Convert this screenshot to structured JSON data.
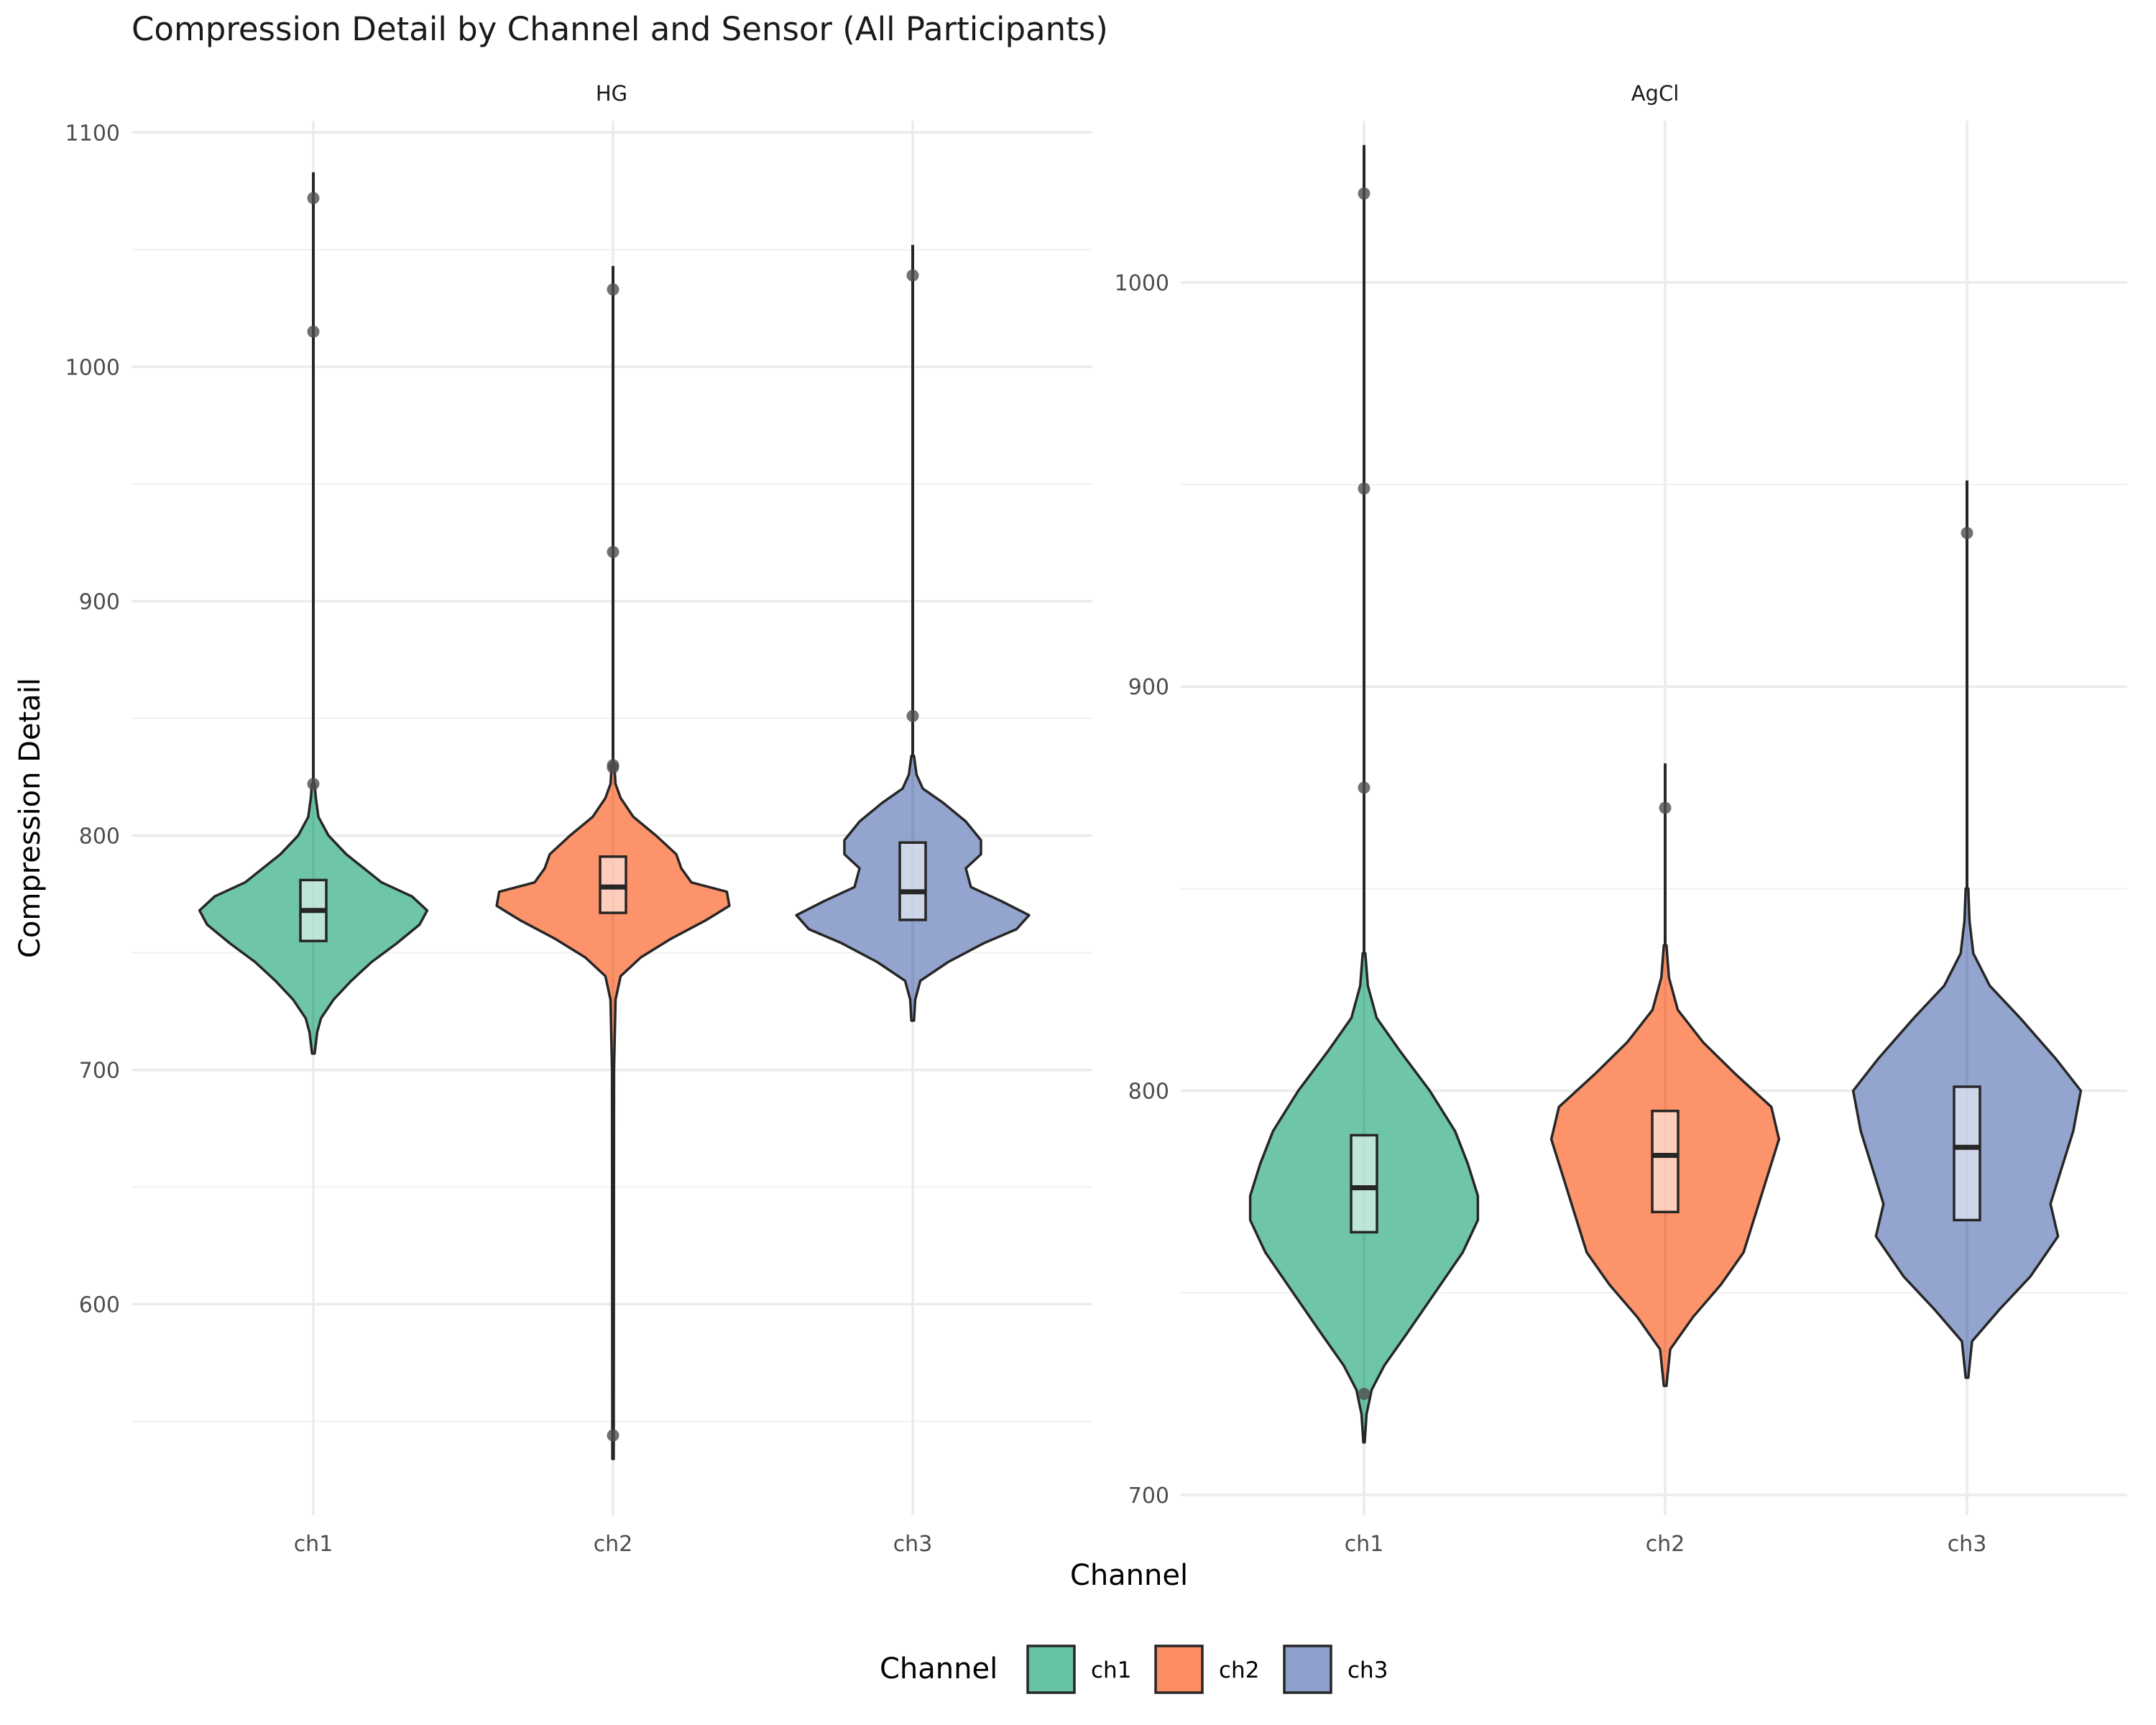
{
  "chart_data": {
    "type": "violin",
    "title": "Compression Detail by Channel and Sensor (All Participants)",
    "xlabel": "Channel",
    "ylabel": "Compression Detail",
    "categories": [
      "ch1",
      "ch2",
      "ch3"
    ],
    "colors": {
      "ch1": "#66c2a5",
      "ch2": "#fc8d62",
      "ch3": "#8da0cb"
    },
    "legend": {
      "title": "Channel",
      "position": "bottom",
      "items": [
        "ch1",
        "ch2",
        "ch3"
      ]
    },
    "panels": [
      {
        "name": "HG",
        "ylim": [
          510,
          1105
        ],
        "yticks": [
          600,
          700,
          800,
          900,
          1000,
          1100
        ],
        "groups": [
          {
            "channel": "ch1",
            "whisker": [
              707,
              1083
            ],
            "box": {
              "q1": 755,
              "median": 768,
              "q3": 781
            },
            "outliers": [
              822,
              1015,
              1072
            ],
            "density": [
              [
                707,
                0.01
              ],
              [
                716,
                0.03
              ],
              [
                722,
                0.06
              ],
              [
                730,
                0.16
              ],
              [
                738,
                0.3
              ],
              [
                746,
                0.46
              ],
              [
                754,
                0.66
              ],
              [
                762,
                0.84
              ],
              [
                768,
                0.9
              ],
              [
                774,
                0.78
              ],
              [
                780,
                0.54
              ],
              [
                786,
                0.4
              ],
              [
                792,
                0.26
              ],
              [
                800,
                0.12
              ],
              [
                808,
                0.04
              ],
              [
                816,
                0.02
              ],
              [
                822,
                0.01
              ]
            ]
          },
          {
            "channel": "ch2",
            "whisker": [
              534,
              1043
            ],
            "box": {
              "q1": 767,
              "median": 778,
              "q3": 791
            },
            "outliers": [
              544,
              829,
              830,
              921,
              1033
            ],
            "density": [
              [
                534,
                0.005
              ],
              [
                700,
                0.008
              ],
              [
                730,
                0.02
              ],
              [
                740,
                0.06
              ],
              [
                748,
                0.22
              ],
              [
                756,
                0.46
              ],
              [
                764,
                0.74
              ],
              [
                770,
                0.92
              ],
              [
                776,
                0.9
              ],
              [
                780,
                0.62
              ],
              [
                786,
                0.54
              ],
              [
                792,
                0.5
              ],
              [
                800,
                0.34
              ],
              [
                808,
                0.16
              ],
              [
                816,
                0.06
              ],
              [
                822,
                0.02
              ],
              [
                830,
                0.01
              ]
            ]
          },
          {
            "channel": "ch3",
            "whisker": [
              721,
              1052
            ],
            "box": {
              "q1": 764,
              "median": 776,
              "q3": 797
            },
            "outliers": [
              851,
              1039
            ],
            "density": [
              [
                721,
                0.01
              ],
              [
                730,
                0.02
              ],
              [
                738,
                0.06
              ],
              [
                746,
                0.28
              ],
              [
                754,
                0.56
              ],
              [
                760,
                0.82
              ],
              [
                766,
                0.92
              ],
              [
                772,
                0.7
              ],
              [
                778,
                0.46
              ],
              [
                786,
                0.42
              ],
              [
                792,
                0.54
              ],
              [
                798,
                0.54
              ],
              [
                806,
                0.42
              ],
              [
                814,
                0.24
              ],
              [
                820,
                0.08
              ],
              [
                826,
                0.03
              ],
              [
                834,
                0.01
              ]
            ]
          }
        ]
      },
      {
        "name": "AgCl",
        "ylim": [
          695,
          1040
        ],
        "yticks": [
          700,
          800,
          900,
          1000
        ],
        "groups": [
          {
            "channel": "ch1",
            "whisker": [
              713,
              1034
            ],
            "box": {
              "q1": 765,
              "median": 776,
              "q3": 789
            },
            "outliers": [
              725,
              875,
              949,
              1022
            ],
            "density": [
              [
                713,
                0.005
              ],
              [
                720,
                0.02
              ],
              [
                726,
                0.06
              ],
              [
                732,
                0.16
              ],
              [
                740,
                0.34
              ],
              [
                750,
                0.56
              ],
              [
                760,
                0.78
              ],
              [
                768,
                0.9
              ],
              [
                774,
                0.9
              ],
              [
                782,
                0.82
              ],
              [
                790,
                0.72
              ],
              [
                800,
                0.52
              ],
              [
                810,
                0.28
              ],
              [
                818,
                0.1
              ],
              [
                826,
                0.03
              ],
              [
                834,
                0.01
              ]
            ]
          },
          {
            "channel": "ch2",
            "whisker": [
              727,
              881
            ],
            "box": {
              "q1": 770,
              "median": 784,
              "q3": 795
            },
            "outliers": [
              870
            ],
            "density": [
              [
                727,
                0.01
              ],
              [
                736,
                0.04
              ],
              [
                744,
                0.22
              ],
              [
                752,
                0.44
              ],
              [
                760,
                0.62
              ],
              [
                770,
                0.72
              ],
              [
                780,
                0.82
              ],
              [
                788,
                0.9
              ],
              [
                796,
                0.84
              ],
              [
                804,
                0.56
              ],
              [
                812,
                0.3
              ],
              [
                820,
                0.1
              ],
              [
                828,
                0.03
              ],
              [
                836,
                0.01
              ]
            ]
          },
          {
            "channel": "ch3",
            "whisker": [
              729,
              951
            ],
            "box": {
              "q1": 768,
              "median": 786,
              "q3": 801
            },
            "outliers": [
              938
            ],
            "density": [
              [
                729,
                0.01
              ],
              [
                738,
                0.04
              ],
              [
                746,
                0.26
              ],
              [
                754,
                0.5
              ],
              [
                764,
                0.72
              ],
              [
                772,
                0.66
              ],
              [
                780,
                0.74
              ],
              [
                790,
                0.84
              ],
              [
                800,
                0.9
              ],
              [
                808,
                0.7
              ],
              [
                818,
                0.42
              ],
              [
                826,
                0.18
              ],
              [
                834,
                0.05
              ],
              [
                842,
                0.02
              ],
              [
                850,
                0.01
              ]
            ]
          }
        ]
      }
    ]
  }
}
